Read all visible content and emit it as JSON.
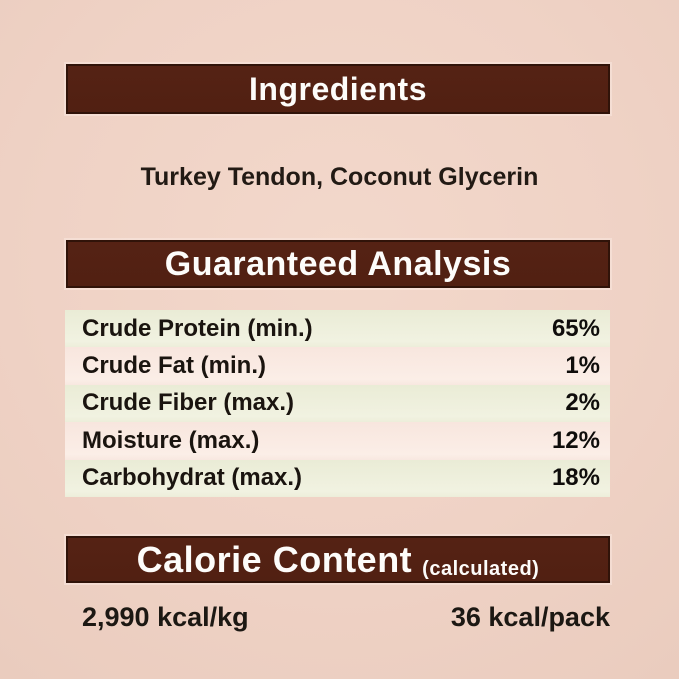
{
  "ingredients_section": {
    "header": "Ingredients",
    "items": "Turkey Tendon, Coconut Glycerin"
  },
  "guaranteed_analysis_section": {
    "header": "Guaranteed Analysis",
    "rows": [
      {
        "label": "Crude Protein (min.)",
        "value": "65%"
      },
      {
        "label": "Crude Fat (min.)",
        "value": "1%"
      },
      {
        "label": "Crude Fiber (max.)",
        "value": "2%"
      },
      {
        "label": "Moisture (max.)",
        "value": "12%"
      },
      {
        "label": "Carbohydrat (max.)",
        "value": "18%"
      }
    ]
  },
  "calorie_content_section": {
    "header": "Calorie Content",
    "qualifier": "(calculated)",
    "energy_per_kg": "2,990 kcal/kg",
    "energy_per_pack": "36 kcal/pack"
  },
  "colors": {
    "background": "#efd2c5",
    "header_bar": "#532113",
    "header_bar_border": "#301309",
    "header_text": "#fdfcfa",
    "row_green": "#edeeda",
    "row_pink": "#f9e8e0",
    "body_text": "#1d1712"
  }
}
